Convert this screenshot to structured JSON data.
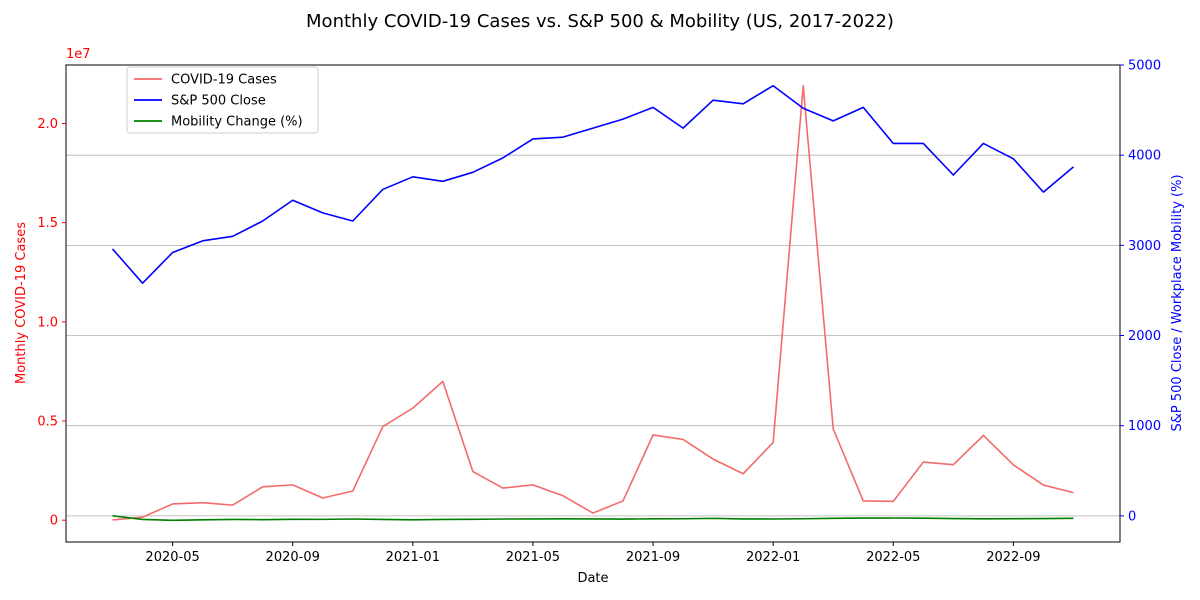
{
  "chart_data": {
    "type": "line",
    "title": "Monthly COVID-19 Cases vs. S&P 500 & Mobility (US, 2017-2022)",
    "xlabel": "Date",
    "ylabel_left": "Monthly COVID-19 Cases",
    "ylabel_right": "S&P 500 Close / Workplace Mobility (%)",
    "left_axis_multiplier": "1e7",
    "left_color": "#ff0000",
    "right_color": "#0000ff",
    "grid": "horizontal lines from right axis",
    "legend_placement": "top-left",
    "x_ticks": [
      "2020-05",
      "2020-09",
      "2021-01",
      "2021-05",
      "2021-09",
      "2022-01",
      "2022-05",
      "2022-09"
    ],
    "y_left_ticks": [
      "0",
      "0.5",
      "1.0",
      "1.5",
      "2.0"
    ],
    "y_right_ticks": [
      "0",
      "1000",
      "2000",
      "3000",
      "4000",
      "5000"
    ],
    "x": [
      "2020-03",
      "2020-04",
      "2020-05",
      "2020-06",
      "2020-07",
      "2020-08",
      "2020-09",
      "2020-10",
      "2020-11",
      "2020-12",
      "2021-01",
      "2021-02",
      "2021-03",
      "2021-04",
      "2021-05",
      "2021-06",
      "2021-07",
      "2021-08",
      "2021-09",
      "2021-10",
      "2021-11",
      "2021-12",
      "2022-01",
      "2022-02",
      "2022-03",
      "2022-04",
      "2022-05",
      "2022-06",
      "2022-07",
      "2022-08",
      "2022-09",
      "2022-10",
      "2022-11"
    ],
    "series": [
      {
        "name": "COVID-19 Cases",
        "axis": "left",
        "color": "#f26b6b",
        "values": [
          10000,
          150000,
          820000,
          880000,
          760000,
          1680000,
          1780000,
          1120000,
          1470000,
          4720000,
          5650000,
          7000000,
          2450000,
          1620000,
          1780000,
          1230000,
          360000,
          970000,
          4300000,
          4070000,
          3080000,
          2340000,
          3920000,
          21900000,
          4600000,
          970000,
          950000,
          2930000,
          2800000,
          4270000,
          2790000,
          1770000,
          1390000
        ]
      },
      {
        "name": "S&P 500 Close",
        "axis": "right",
        "color": "#0000ff",
        "values": [
          2960,
          2580,
          2920,
          3050,
          3100,
          3270,
          3500,
          3360,
          3270,
          3620,
          3760,
          3710,
          3810,
          3970,
          4180,
          4200,
          4300,
          4400,
          4530,
          4300,
          4610,
          4570,
          4770,
          4520,
          4380,
          4530,
          4130,
          4130,
          3780,
          4130,
          3960,
          3590,
          3870
        ]
      },
      {
        "name": "Mobility Change (%)",
        "axis": "right",
        "color": "#008000",
        "values": [
          0,
          -40,
          -50,
          -44,
          -40,
          -42,
          -38,
          -39,
          -35,
          -40,
          -44,
          -40,
          -38,
          -35,
          -34,
          -33,
          -34,
          -36,
          -33,
          -32,
          -28,
          -34,
          -35,
          -32,
          -27,
          -25,
          -24,
          -26,
          -30,
          -33,
          -31,
          -30,
          -27
        ]
      }
    ],
    "ylim_left": [
      -1100000,
      22950000
    ],
    "ylim_right": [
      -290,
      5000
    ]
  }
}
